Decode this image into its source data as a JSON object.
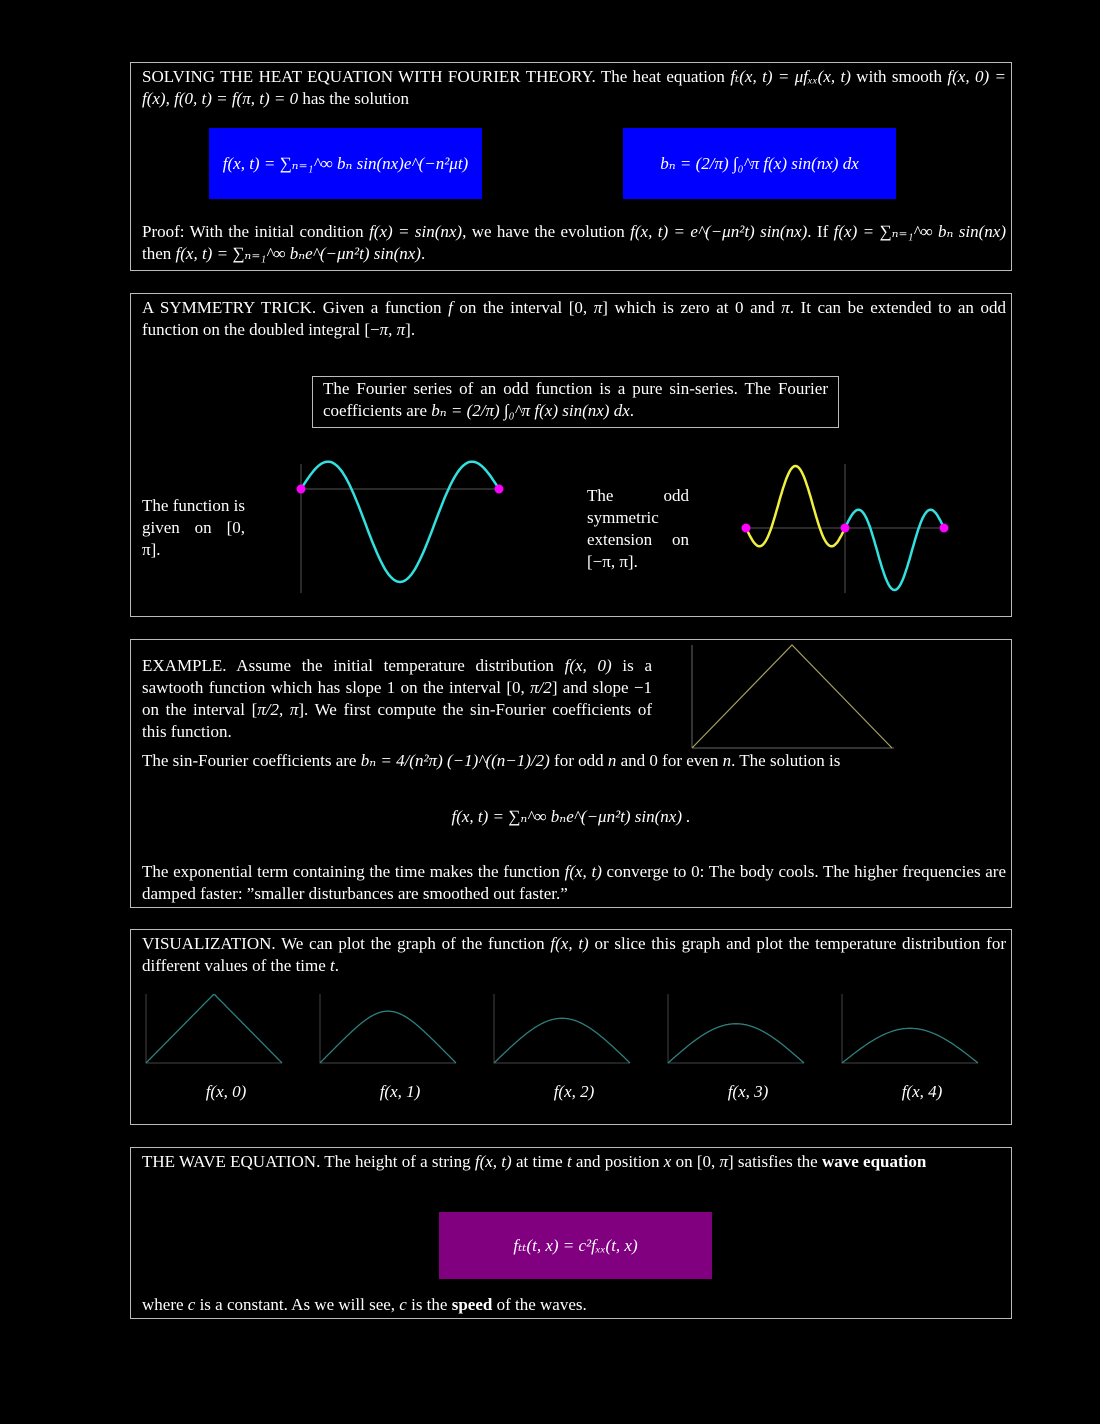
{
  "heat": {
    "intro": [
      {
        "t": "SOLVING THE HEAT EQUATION WITH FOURIER THEORY. The heat equation "
      },
      {
        "m": "fₜ(x, t) = μfₓₓ(x, t)"
      },
      {
        "t": " with smooth "
      },
      {
        "m": "f(x, 0) = f(x), f(0, t) = f(π, t) = 0"
      },
      {
        "t": " has the solution"
      }
    ],
    "solution_formula": "f(x, t) = ∑ₙ₌₁^∞ bₙ sin(nx)e^(−n²μt)",
    "coefficient_formula": "bₙ = (2/π) ∫₀^π f(x) sin(nx) dx",
    "proof": [
      {
        "t": "Proof: With the initial condition "
      },
      {
        "m": "f(x) = sin(nx)"
      },
      {
        "t": ", we have the evolution "
      },
      {
        "m": "f(x, t) = e^(−μn²t) sin(nx)"
      },
      {
        "t": ". If "
      },
      {
        "m": "f(x) = ∑ₙ₌₁^∞ bₙ sin(nx)"
      },
      {
        "t": " then "
      },
      {
        "m": "f(x, t) = ∑ₙ₌₁^∞ bₙe^(−μn²t) sin(nx)"
      },
      {
        "t": "."
      }
    ],
    "box_color": "#0000ff"
  },
  "symmetry": {
    "intro": [
      {
        "t": "A SYMMETRY TRICK. Given a function "
      },
      {
        "m": "f"
      },
      {
        "t": " on the interval [0, "
      },
      {
        "m": "π"
      },
      {
        "t": "] which is zero at 0 and "
      },
      {
        "m": "π"
      },
      {
        "t": ". It can be extended to an odd function on the doubled integral [−"
      },
      {
        "m": "π, π"
      },
      {
        "t": "]."
      }
    ],
    "note": [
      {
        "t": "The Fourier series of an odd function is a pure sin-series. The Fourier coefficients are "
      },
      {
        "m": "bₙ = (2/π) ∫₀^π f(x) sin(nx) dx"
      },
      {
        "t": "."
      }
    ],
    "left_caption": "The function is given on [0, π].",
    "right_caption": "The odd symmetric extension on [−π, π].",
    "colors": {
      "curve": "#33e0e0",
      "extension": "#f0f040",
      "points": "#ff00ff"
    }
  },
  "example": {
    "intro": [
      {
        "t": "EXAMPLE. Assume the initial temperature distribution "
      },
      {
        "m": "f(x, 0)"
      },
      {
        "t": " is a sawtooth function which has slope 1 on the interval [0, "
      },
      {
        "m": "π/2"
      },
      {
        "t": "] and slope −1 on the interval ["
      },
      {
        "m": "π/2, π"
      },
      {
        "t": "]. We first compute the sin-Fourier coefficients of this function."
      }
    ],
    "coefficients": [
      {
        "t": "The sin-Fourier coefficients are "
      },
      {
        "m": "bₙ = 4/(n²π) (−1)^((n−1)/2)"
      },
      {
        "t": " for odd "
      },
      {
        "m": "n"
      },
      {
        "t": " and 0 for even "
      },
      {
        "m": "n"
      },
      {
        "t": ". The solution is"
      }
    ],
    "solution": "f(x, t) = ∑ₙ^∞ bₙe^(−μn²t) sin(nx) .",
    "conclusion": [
      {
        "t": "The exponential term containing the time makes the function "
      },
      {
        "m": "f(x, t)"
      },
      {
        "t": " converge to 0: The body cools. The higher frequencies are damped faster: ”smaller disturbances are smoothed out faster.”"
      }
    ]
  },
  "visualization": {
    "intro": [
      {
        "t": "VISUALIZATION. We can plot the graph of the function "
      },
      {
        "m": "f(x, t)"
      },
      {
        "t": " or slice this graph and plot the temperature distribution for different values of the time "
      },
      {
        "m": "t"
      },
      {
        "t": "."
      }
    ],
    "labels": [
      "f(x, 0)",
      "f(x, 1)",
      "f(x, 2)",
      "f(x, 3)",
      "f(x, 4)"
    ],
    "curve_color": "#2e8080"
  },
  "wave": {
    "intro": [
      {
        "t": "THE WAVE EQUATION. The height of a string "
      },
      {
        "m": "f(x, t)"
      },
      {
        "t": " at time "
      },
      {
        "m": "t"
      },
      {
        "t": " and position "
      },
      {
        "m": "x"
      },
      {
        "t": " on [0, "
      },
      {
        "m": "π"
      },
      {
        "t": "] satisfies the "
      },
      {
        "b": "wave equation"
      }
    ],
    "formula": "fₜₜ(t, x) = c²fₓₓ(t, x)",
    "outro": [
      {
        "t": "where "
      },
      {
        "m": "c"
      },
      {
        "t": " is a constant. As we will see, "
      },
      {
        "m": "c"
      },
      {
        "t": " is the "
      },
      {
        "b": "speed"
      },
      {
        "t": " of the waves."
      }
    ],
    "box_color": "#800080"
  }
}
